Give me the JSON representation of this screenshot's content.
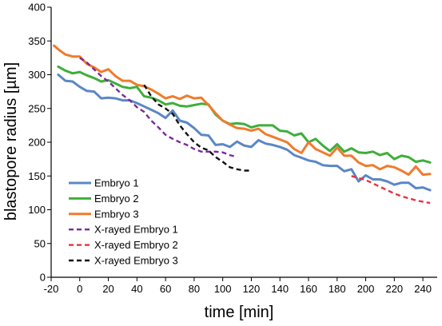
{
  "chart_data": {
    "type": "line",
    "xlabel": "time [min]",
    "ylabel": "blastopore radius [µm]",
    "xlim": [
      -20,
      250
    ],
    "ylim": [
      0,
      400
    ],
    "x_ticks": [
      -20,
      0,
      20,
      40,
      60,
      80,
      100,
      120,
      140,
      160,
      180,
      200,
      220,
      240
    ],
    "y_ticks": [
      0,
      50,
      100,
      150,
      200,
      250,
      300,
      350,
      400
    ],
    "grid": false,
    "legend": "bottom-left",
    "series": [
      {
        "name": "Embryo 1",
        "color": "#5b87c4",
        "dashed": false,
        "x": [
          -15,
          -10,
          -5,
          0,
          5,
          10,
          15,
          20,
          25,
          30,
          35,
          40,
          45,
          50,
          55,
          60,
          65,
          70,
          75,
          80,
          85,
          90,
          95,
          100,
          105,
          110,
          115,
          120,
          125,
          130,
          135,
          140,
          145,
          150,
          155,
          160,
          165,
          170,
          175,
          180,
          185,
          190,
          195,
          200,
          205,
          210,
          215,
          220,
          225,
          230,
          235,
          240,
          245
        ],
        "y": [
          300,
          291,
          290,
          282,
          276,
          275,
          265,
          266,
          265,
          262,
          262,
          258,
          253,
          248,
          243,
          236,
          247,
          232,
          229,
          221,
          211,
          210,
          196,
          197,
          193,
          201,
          195,
          193,
          203,
          198,
          196,
          193,
          189,
          181,
          177,
          173,
          171,
          166,
          165,
          165,
          157,
          160,
          142,
          151,
          145,
          145,
          142,
          137,
          140,
          140,
          132,
          133,
          129
        ]
      },
      {
        "name": "Embryo 2",
        "color": "#3fae3a",
        "dashed": false,
        "x": [
          -15,
          -10,
          -5,
          0,
          5,
          10,
          15,
          20,
          25,
          30,
          35,
          40,
          45,
          50,
          55,
          60,
          65,
          70,
          75,
          80,
          85,
          90,
          95,
          100,
          105,
          110,
          115,
          120,
          125,
          130,
          135,
          140,
          145,
          150,
          155,
          160,
          165,
          170,
          175,
          180,
          185,
          190,
          195,
          200,
          205,
          210,
          215,
          220,
          225,
          230,
          235,
          240,
          245
        ],
        "y": [
          312,
          306,
          302,
          304,
          299,
          295,
          290,
          292,
          287,
          282,
          280,
          282,
          268,
          266,
          262,
          256,
          258,
          254,
          253,
          255,
          257,
          256,
          241,
          232,
          227,
          228,
          227,
          222,
          225,
          225,
          225,
          217,
          216,
          210,
          213,
          200,
          205,
          195,
          187,
          197,
          186,
          191,
          185,
          184,
          186,
          181,
          184,
          175,
          180,
          178,
          171,
          173,
          170
        ]
      },
      {
        "name": "Embryo 3",
        "color": "#f07b2c",
        "dashed": false,
        "x": [
          -18,
          -14,
          -10,
          -5,
          0,
          5,
          10,
          15,
          20,
          25,
          30,
          35,
          40,
          45,
          50,
          55,
          60,
          65,
          70,
          75,
          80,
          85,
          90,
          95,
          100,
          105,
          110,
          115,
          120,
          125,
          130,
          135,
          140,
          145,
          150,
          155,
          160,
          165,
          170,
          175,
          180,
          185,
          190,
          195,
          200,
          205,
          210,
          215,
          220,
          225,
          230,
          235,
          240,
          245
        ],
        "y": [
          343,
          336,
          330,
          327,
          327,
          316,
          311,
          304,
          308,
          298,
          291,
          291,
          285,
          283,
          278,
          272,
          265,
          268,
          264,
          269,
          265,
          266,
          255,
          243,
          232,
          226,
          221,
          220,
          217,
          220,
          212,
          208,
          204,
          200,
          190,
          184,
          200,
          190,
          185,
          180,
          192,
          180,
          180,
          170,
          165,
          166,
          160,
          165,
          163,
          158,
          152,
          164,
          152,
          153
        ]
      },
      {
        "name": "X-rayed Embryo 1",
        "color": "#7a2a9a",
        "dashed": true,
        "x": [
          0,
          5,
          10,
          15,
          20,
          25,
          30,
          35,
          40,
          45,
          50,
          55,
          60,
          65,
          70,
          75,
          80,
          85,
          90,
          95,
          100,
          105,
          110
        ],
        "y": [
          325,
          318,
          308,
          298,
          290,
          280,
          270,
          262,
          252,
          245,
          232,
          222,
          211,
          205,
          200,
          196,
          190,
          186,
          186,
          186,
          185,
          181,
          178
        ]
      },
      {
        "name": "X-rayed Embryo 2",
        "color": "#e8323c",
        "dashed": true,
        "x": [
          190,
          195,
          200,
          205,
          210,
          215,
          220,
          225,
          230,
          235,
          240,
          245
        ],
        "y": [
          150,
          147,
          144,
          139,
          134,
          129,
          124,
          120,
          117,
          114,
          112,
          110
        ]
      },
      {
        "name": "X-rayed Embryo 3",
        "color": "#111111",
        "dashed": true,
        "x": [
          45,
          50,
          55,
          60,
          65,
          70,
          75,
          80,
          85,
          90,
          95,
          100,
          105,
          110,
          115,
          120
        ],
        "y": [
          285,
          268,
          256,
          250,
          242,
          225,
          212,
          200,
          192,
          188,
          178,
          171,
          163,
          160,
          158,
          158
        ]
      }
    ]
  }
}
